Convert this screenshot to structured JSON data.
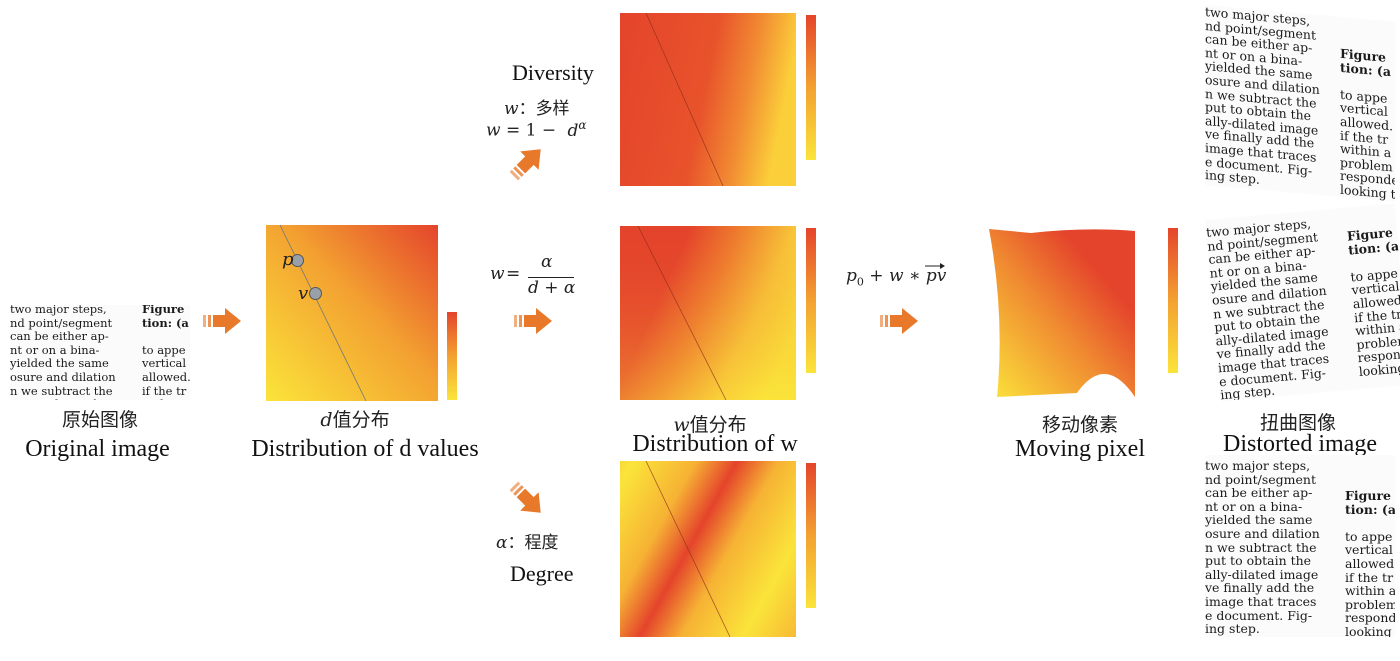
{
  "original": {
    "zh": "原始图像",
    "en": "Original image",
    "lines": [
      "two major steps,",
      "nd point/segment",
      "can be either ap-",
      "nt or on a bina-",
      "yielded the same",
      "osure and dilation",
      "n we subtract the",
      "put to obtain the",
      "ally-dilated image",
      "ve finally add the",
      "image that traces",
      "e document. Fig-",
      "ing step."
    ],
    "side_lines": [
      "Figure",
      "tion: (a",
      "",
      "to appe",
      "vertical",
      "allowed.",
      "if the tr",
      "within a",
      "problem",
      "responde",
      "looking t"
    ]
  },
  "d_dist": {
    "zh": "值分布",
    "var": "d",
    "en": "Distribution of d values",
    "point_p": "p",
    "point_v": "v"
  },
  "w_dist": {
    "zh": "值分布",
    "var": "w",
    "en": "Distribution of w"
  },
  "moving": {
    "zh": "移动像素",
    "en": "Moving pixel"
  },
  "distorted": {
    "zh": "扭曲图像",
    "en": "Distorted image"
  },
  "diversity": {
    "en": "Diversity",
    "desc_var": "w",
    "desc_sep": "：",
    "desc_zh": "多样",
    "formula_lhs": "w",
    "formula_rhs": "= 1 −",
    "formula_base": "d",
    "formula_exp": "α"
  },
  "degree": {
    "en": "Degree",
    "desc_var": "α",
    "desc_sep": "：",
    "desc_zh": "程度"
  },
  "formula_mid": {
    "lhs": "w",
    "eq": "=",
    "num": "α",
    "den": "d + α"
  },
  "formula_move": {
    "p": "p",
    "sub": "0",
    "rest": "+ w ∗",
    "vec": "pv"
  },
  "colors": {
    "orange": "#e8792b",
    "red": "#e4442b",
    "yellow": "#fbe43a"
  }
}
